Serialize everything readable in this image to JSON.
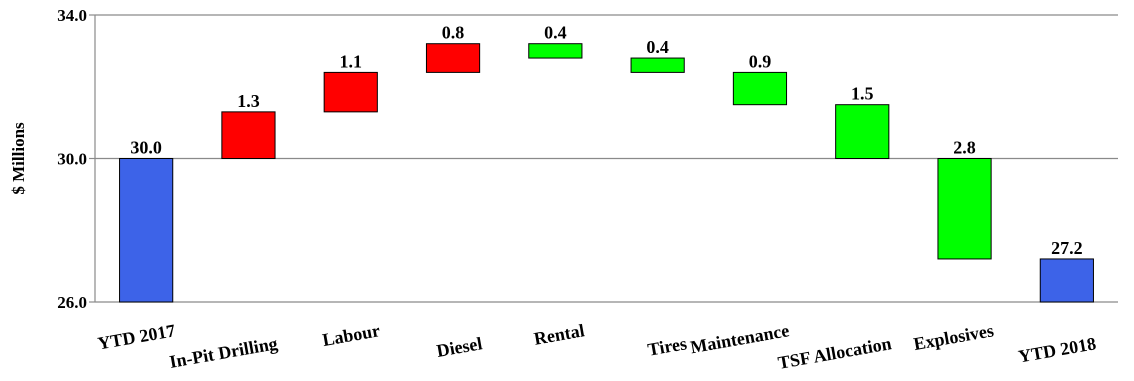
{
  "chart_data": {
    "type": "bar",
    "subtype": "waterfall",
    "ylabel": "$ Millions",
    "ylim": [
      26.0,
      34.0
    ],
    "yticks": [
      {
        "value": 26.0,
        "label": "26.0"
      },
      {
        "value": 30.0,
        "label": "30.0"
      },
      {
        "value": 34.0,
        "label": "34.0"
      }
    ],
    "grid": true,
    "colors": {
      "total": "#3d63e8",
      "increase": "#ff0000",
      "decrease": "#00ff00"
    },
    "bars": [
      {
        "category": "YTD 2017",
        "kind": "total",
        "start": 26.0,
        "end": 30.0,
        "label": "30.0"
      },
      {
        "category": "In-Pit Drilling",
        "kind": "increase",
        "start": 30.0,
        "end": 31.3,
        "label": "1.3"
      },
      {
        "category": "Labour",
        "kind": "increase",
        "start": 31.3,
        "end": 32.4,
        "label": "1.1"
      },
      {
        "category": "Diesel",
        "kind": "increase",
        "start": 32.4,
        "end": 33.2,
        "label": "0.8"
      },
      {
        "category": "Rental",
        "kind": "decrease",
        "start": 33.2,
        "end": 32.8,
        "label": "0.4"
      },
      {
        "category": "Tires",
        "kind": "decrease",
        "start": 32.8,
        "end": 32.4,
        "label": "0.4"
      },
      {
        "category": "Maintenance",
        "kind": "decrease",
        "start": 32.4,
        "end": 31.5,
        "label": "0.9"
      },
      {
        "category": "TSF Allocation",
        "kind": "decrease",
        "start": 31.5,
        "end": 30.0,
        "label": "1.5"
      },
      {
        "category": "Explosives",
        "kind": "decrease",
        "start": 30.0,
        "end": 27.2,
        "label": "2.8"
      },
      {
        "category": "YTD 2018",
        "kind": "total",
        "start": 26.0,
        "end": 27.2,
        "label": "27.2"
      }
    ]
  }
}
